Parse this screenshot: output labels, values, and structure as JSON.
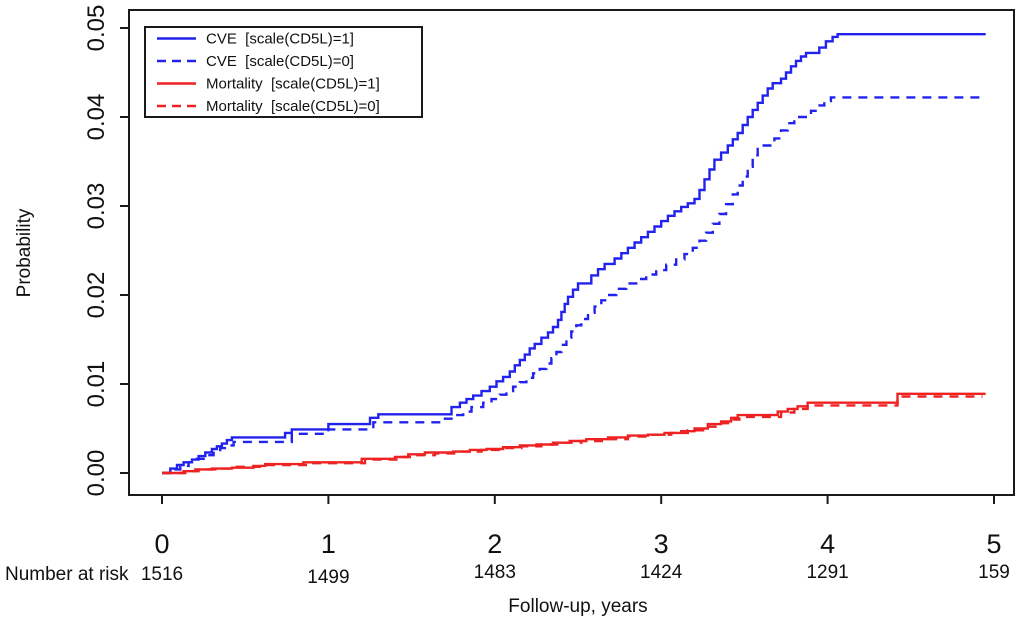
{
  "figure": {
    "background": "#ffffff",
    "colors": {
      "cve": "#2222ee",
      "mortality": "#ee2222",
      "axis": "#1a1a1a"
    }
  },
  "axes": {
    "y_label": "Probability",
    "x_label": "Follow-up, years",
    "y_ticks": [
      "0.00",
      "0.01",
      "0.02",
      "0.03",
      "0.04",
      "0.05"
    ],
    "x_ticks": [
      "0",
      "1",
      "2",
      "3",
      "4",
      "5"
    ]
  },
  "risk_row": {
    "label": "Number at risk",
    "values": [
      "1516",
      "1499",
      "1483",
      "1424",
      "1291",
      "159"
    ]
  },
  "legend": {
    "items": [
      {
        "label": "CVE  [scale(CD5L)=1]",
        "color": "#2222ee",
        "dashed": false
      },
      {
        "label": "CVE  [scale(CD5L)=0]",
        "color": "#2222ee",
        "dashed": true
      },
      {
        "label": "Mortality  [scale(CD5L)=1]",
        "color": "#ee2222",
        "dashed": false
      },
      {
        "label": "Mortality  [scale(CD5L)=0]",
        "color": "#ee2222",
        "dashed": true
      }
    ]
  },
  "chart_data": {
    "type": "line",
    "subtype": "step-cumulative-incidence",
    "title": "",
    "xlabel": "Follow-up, years",
    "ylabel": "Probability",
    "xlim": [
      0,
      5.12
    ],
    "ylim": [
      0,
      0.05
    ],
    "grid": false,
    "legend_position": "top-left",
    "number_at_risk": {
      "times": [
        0,
        1,
        2,
        3,
        4,
        5
      ],
      "values": [
        1516,
        1499,
        1483,
        1424,
        1291,
        159
      ]
    },
    "series": [
      {
        "name": "CVE [scale(CD5L)=1]",
        "color": "#2222ee",
        "dashed": false,
        "points": [
          [
            0,
            0
          ],
          [
            0.05,
            0.0005
          ],
          [
            0.09,
            0.0009
          ],
          [
            0.13,
            0.0012
          ],
          [
            0.18,
            0.0015
          ],
          [
            0.22,
            0.0019
          ],
          [
            0.26,
            0.0023
          ],
          [
            0.3,
            0.0027
          ],
          [
            0.33,
            0.003
          ],
          [
            0.36,
            0.0033
          ],
          [
            0.39,
            0.0037
          ],
          [
            0.42,
            0.004
          ],
          [
            0.74,
            0.0045
          ],
          [
            0.78,
            0.0049
          ],
          [
            1.0,
            0.0055
          ],
          [
            1.25,
            0.0062
          ],
          [
            1.3,
            0.0066
          ],
          [
            1.74,
            0.0074
          ],
          [
            1.79,
            0.0079
          ],
          [
            1.83,
            0.0083
          ],
          [
            1.87,
            0.0087
          ],
          [
            1.92,
            0.0092
          ],
          [
            1.97,
            0.0097
          ],
          [
            2.01,
            0.0103
          ],
          [
            2.05,
            0.0108
          ],
          [
            2.09,
            0.0114
          ],
          [
            2.12,
            0.0121
          ],
          [
            2.15,
            0.0127
          ],
          [
            2.18,
            0.0133
          ],
          [
            2.21,
            0.014
          ],
          [
            2.24,
            0.0145
          ],
          [
            2.28,
            0.0152
          ],
          [
            2.32,
            0.0158
          ],
          [
            2.35,
            0.0164
          ],
          [
            2.38,
            0.0172
          ],
          [
            2.4,
            0.0181
          ],
          [
            2.42,
            0.019
          ],
          [
            2.44,
            0.0198
          ],
          [
            2.47,
            0.0206
          ],
          [
            2.5,
            0.0213
          ],
          [
            2.58,
            0.0222
          ],
          [
            2.62,
            0.0229
          ],
          [
            2.66,
            0.0235
          ],
          [
            2.72,
            0.0241
          ],
          [
            2.76,
            0.0247
          ],
          [
            2.8,
            0.0253
          ],
          [
            2.84,
            0.0259
          ],
          [
            2.88,
            0.0265
          ],
          [
            2.92,
            0.0271
          ],
          [
            2.96,
            0.0277
          ],
          [
            3.0,
            0.0283
          ],
          [
            3.04,
            0.0289
          ],
          [
            3.08,
            0.0294
          ],
          [
            3.12,
            0.0299
          ],
          [
            3.16,
            0.0303
          ],
          [
            3.2,
            0.0308
          ],
          [
            3.23,
            0.0318
          ],
          [
            3.26,
            0.033
          ],
          [
            3.29,
            0.0341
          ],
          [
            3.32,
            0.0352
          ],
          [
            3.36,
            0.036
          ],
          [
            3.4,
            0.0368
          ],
          [
            3.43,
            0.0375
          ],
          [
            3.46,
            0.0382
          ],
          [
            3.49,
            0.0391
          ],
          [
            3.52,
            0.04
          ],
          [
            3.55,
            0.0408
          ],
          [
            3.58,
            0.0416
          ],
          [
            3.61,
            0.0424
          ],
          [
            3.64,
            0.0432
          ],
          [
            3.67,
            0.0438
          ],
          [
            3.72,
            0.0443
          ],
          [
            3.75,
            0.045
          ],
          [
            3.78,
            0.0457
          ],
          [
            3.81,
            0.0463
          ],
          [
            3.84,
            0.0468
          ],
          [
            3.87,
            0.0472
          ],
          [
            3.95,
            0.0478
          ],
          [
            3.99,
            0.0485
          ],
          [
            4.03,
            0.049
          ],
          [
            4.06,
            0.0493
          ],
          [
            4.95,
            0.0493
          ]
        ]
      },
      {
        "name": "CVE [scale(CD5L)=0]",
        "color": "#2222ee",
        "dashed": true,
        "points": [
          [
            0,
            0
          ],
          [
            0.06,
            0.0004
          ],
          [
            0.11,
            0.0008
          ],
          [
            0.16,
            0.0012
          ],
          [
            0.21,
            0.0016
          ],
          [
            0.26,
            0.002
          ],
          [
            0.31,
            0.0024
          ],
          [
            0.35,
            0.0028
          ],
          [
            0.39,
            0.0031
          ],
          [
            0.43,
            0.0035
          ],
          [
            0.78,
            0.0044
          ],
          [
            1.0,
            0.0049
          ],
          [
            1.27,
            0.0057
          ],
          [
            1.7,
            0.0061
          ],
          [
            1.76,
            0.0065
          ],
          [
            1.81,
            0.0069
          ],
          [
            1.86,
            0.0074
          ],
          [
            1.93,
            0.0079
          ],
          [
            1.98,
            0.0083
          ],
          [
            2.03,
            0.0088
          ],
          [
            2.07,
            0.0092
          ],
          [
            2.11,
            0.0097
          ],
          [
            2.15,
            0.0102
          ],
          [
            2.19,
            0.0107
          ],
          [
            2.23,
            0.0112
          ],
          [
            2.27,
            0.0117
          ],
          [
            2.31,
            0.0123
          ],
          [
            2.34,
            0.0129
          ],
          [
            2.37,
            0.0136
          ],
          [
            2.4,
            0.0144
          ],
          [
            2.43,
            0.0152
          ],
          [
            2.46,
            0.0159
          ],
          [
            2.49,
            0.0166
          ],
          [
            2.52,
            0.0173
          ],
          [
            2.56,
            0.018
          ],
          [
            2.6,
            0.0187
          ],
          [
            2.64,
            0.0194
          ],
          [
            2.68,
            0.02
          ],
          [
            2.73,
            0.0207
          ],
          [
            2.79,
            0.0213
          ],
          [
            2.85,
            0.0218
          ],
          [
            2.91,
            0.0223
          ],
          [
            2.97,
            0.0228
          ],
          [
            3.03,
            0.0234
          ],
          [
            3.09,
            0.024
          ],
          [
            3.14,
            0.0246
          ],
          [
            3.19,
            0.0253
          ],
          [
            3.23,
            0.0261
          ],
          [
            3.27,
            0.027
          ],
          [
            3.31,
            0.028
          ],
          [
            3.35,
            0.0291
          ],
          [
            3.39,
            0.0302
          ],
          [
            3.43,
            0.0313
          ],
          [
            3.46,
            0.0323
          ],
          [
            3.49,
            0.0333
          ],
          [
            3.52,
            0.0344
          ],
          [
            3.55,
            0.0357
          ],
          [
            3.58,
            0.0368
          ],
          [
            3.68,
            0.0376
          ],
          [
            3.72,
            0.0385
          ],
          [
            3.76,
            0.0393
          ],
          [
            3.8,
            0.04
          ],
          [
            3.9,
            0.0407
          ],
          [
            3.94,
            0.0413
          ],
          [
            3.98,
            0.0418
          ],
          [
            4.02,
            0.0422
          ],
          [
            4.95,
            0.0422
          ]
        ]
      },
      {
        "name": "Mortality [scale(CD5L)=1]",
        "color": "#ee2222",
        "dashed": false,
        "points": [
          [
            0,
            0
          ],
          [
            0.13,
            0.0002
          ],
          [
            0.2,
            0.0004
          ],
          [
            0.3,
            0.0005
          ],
          [
            0.42,
            0.0006
          ],
          [
            0.55,
            0.0008
          ],
          [
            0.62,
            0.001
          ],
          [
            0.85,
            0.0012
          ],
          [
            1.2,
            0.0016
          ],
          [
            1.4,
            0.0018
          ],
          [
            1.48,
            0.0021
          ],
          [
            1.58,
            0.0023
          ],
          [
            1.75,
            0.0024
          ],
          [
            1.85,
            0.0026
          ],
          [
            1.95,
            0.0027
          ],
          [
            2.05,
            0.0029
          ],
          [
            2.15,
            0.0031
          ],
          [
            2.25,
            0.0032
          ],
          [
            2.35,
            0.0034
          ],
          [
            2.45,
            0.0036
          ],
          [
            2.55,
            0.0038
          ],
          [
            2.68,
            0.004
          ],
          [
            2.8,
            0.0042
          ],
          [
            2.92,
            0.0043
          ],
          [
            3.02,
            0.0045
          ],
          [
            3.12,
            0.0047
          ],
          [
            3.2,
            0.005
          ],
          [
            3.28,
            0.0055
          ],
          [
            3.36,
            0.0058
          ],
          [
            3.42,
            0.0062
          ],
          [
            3.46,
            0.0065
          ],
          [
            3.7,
            0.0069
          ],
          [
            3.76,
            0.0072
          ],
          [
            3.82,
            0.0075
          ],
          [
            3.88,
            0.0079
          ],
          [
            4.42,
            0.0089
          ],
          [
            4.95,
            0.0089
          ]
        ]
      },
      {
        "name": "Mortality [scale(CD5L)=0]",
        "color": "#ee2222",
        "dashed": true,
        "points": [
          [
            0,
            0
          ],
          [
            0.14,
            0.0002
          ],
          [
            0.22,
            0.0004
          ],
          [
            0.32,
            0.0005
          ],
          [
            0.45,
            0.0007
          ],
          [
            0.6,
            0.0009
          ],
          [
            0.88,
            0.0011
          ],
          [
            1.22,
            0.0015
          ],
          [
            1.42,
            0.0018
          ],
          [
            1.52,
            0.002
          ],
          [
            1.64,
            0.0022
          ],
          [
            1.8,
            0.0024
          ],
          [
            1.92,
            0.0026
          ],
          [
            2.04,
            0.0028
          ],
          [
            2.16,
            0.003
          ],
          [
            2.28,
            0.0032
          ],
          [
            2.4,
            0.0034
          ],
          [
            2.52,
            0.0036
          ],
          [
            2.66,
            0.0038
          ],
          [
            2.8,
            0.0041
          ],
          [
            2.94,
            0.0043
          ],
          [
            3.06,
            0.0045
          ],
          [
            3.16,
            0.0048
          ],
          [
            3.26,
            0.0052
          ],
          [
            3.34,
            0.0056
          ],
          [
            3.42,
            0.006
          ],
          [
            3.47,
            0.0063
          ],
          [
            3.72,
            0.0068
          ],
          [
            3.8,
            0.0072
          ],
          [
            3.88,
            0.0076
          ],
          [
            4.42,
            0.0086
          ],
          [
            4.93,
            0.0086
          ]
        ]
      }
    ]
  }
}
